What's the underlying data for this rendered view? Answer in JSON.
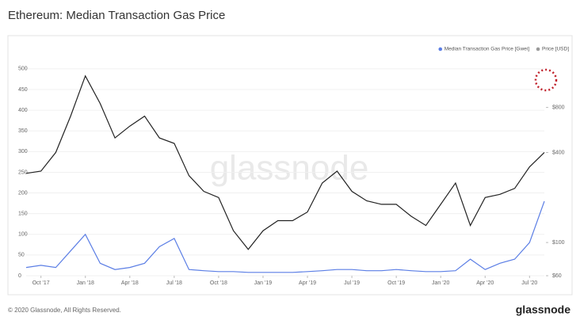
{
  "chart_data": {
    "type": "line",
    "title": "Ethereum: Median Transaction Gas Price",
    "watermark": "glassnode",
    "footer": "© 2020 Glassnode, All Rights Reserved.",
    "brand": "glassnode",
    "x": [
      "2017-09",
      "2017-10",
      "2017-11",
      "2017-12",
      "2018-01",
      "2018-02",
      "2018-03",
      "2018-04",
      "2018-05",
      "2018-06",
      "2018-07",
      "2018-08",
      "2018-09",
      "2018-10",
      "2018-11",
      "2018-12",
      "2019-01",
      "2019-02",
      "2019-03",
      "2019-04",
      "2019-05",
      "2019-06",
      "2019-07",
      "2019-08",
      "2019-09",
      "2019-10",
      "2019-11",
      "2019-12",
      "2020-01",
      "2020-02",
      "2020-03",
      "2020-04",
      "2020-05",
      "2020-06",
      "2020-07",
      "2020-08"
    ],
    "xlim": [
      "2017-09",
      "2020-08"
    ],
    "xticks": [
      {
        "value": "2017-10",
        "label": "Oct '17"
      },
      {
        "value": "2018-01",
        "label": "Jan '18"
      },
      {
        "value": "2018-04",
        "label": "Apr '18"
      },
      {
        "value": "2018-07",
        "label": "Jul '18"
      },
      {
        "value": "2018-10",
        "label": "Oct '18"
      },
      {
        "value": "2019-01",
        "label": "Jan '19"
      },
      {
        "value": "2019-04",
        "label": "Apr '19"
      },
      {
        "value": "2019-07",
        "label": "Jul '19"
      },
      {
        "value": "2019-10",
        "label": "Oct '19"
      },
      {
        "value": "2020-01",
        "label": "Jan '20"
      },
      {
        "value": "2020-04",
        "label": "Apr '20"
      },
      {
        "value": "2020-07",
        "label": "Jul '20"
      }
    ],
    "ylim": [
      0,
      517
    ],
    "yticks": [
      0,
      50,
      100,
      150,
      200,
      250,
      300,
      350,
      400,
      450,
      500
    ],
    "y2lim": [
      60,
      1615
    ],
    "y2scale": "log",
    "y2ticks": [
      {
        "value": 60,
        "label": "$60"
      },
      {
        "value": 100,
        "label": "$100"
      },
      {
        "value": 400,
        "label": "$400"
      },
      {
        "value": 800,
        "label": "$800"
      }
    ],
    "legend": "top-right",
    "series": [
      {
        "name": "Median Transaction Gas Price [Gwei]",
        "color": "#5b7ee5",
        "values": [
          20,
          25,
          20,
          60,
          100,
          30,
          15,
          20,
          30,
          70,
          90,
          15,
          12,
          10,
          10,
          8,
          8,
          8,
          8,
          10,
          12,
          15,
          15,
          12,
          12,
          15,
          12,
          10,
          10,
          12,
          40,
          15,
          30,
          40,
          80,
          180
        ]
      },
      {
        "name": "Price [USD]",
        "color": "#222222",
        "legend_color": "#9a9a9a",
        "axis": "y2",
        "values": [
          290,
          300,
          400,
          700,
          1300,
          850,
          500,
          600,
          700,
          500,
          460,
          280,
          220,
          200,
          120,
          90,
          120,
          140,
          140,
          160,
          250,
          300,
          220,
          190,
          180,
          180,
          150,
          130,
          180,
          250,
          130,
          200,
          210,
          230,
          320,
          400
        ]
      }
    ]
  }
}
